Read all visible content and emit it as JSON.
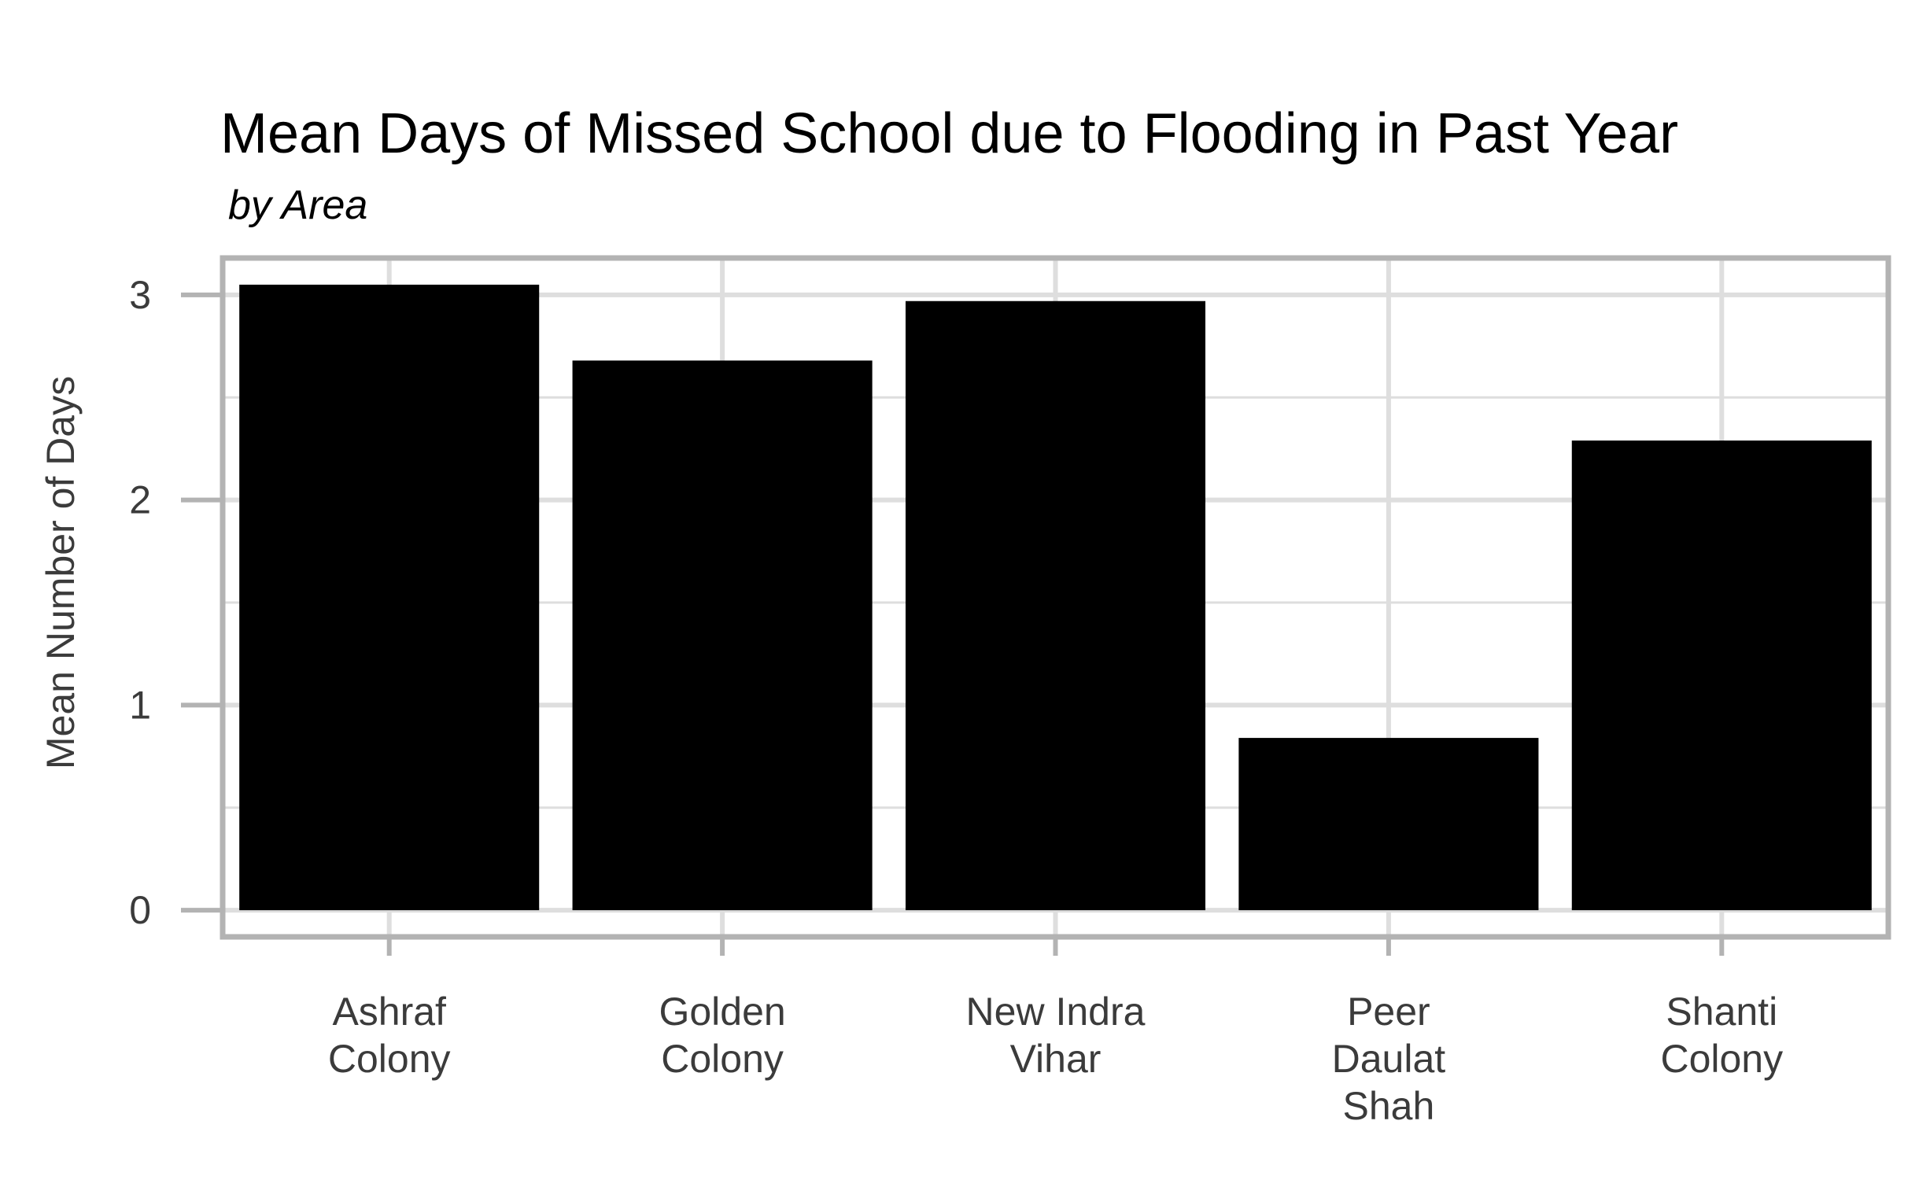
{
  "chart_data": {
    "type": "bar",
    "title": "Mean Days of Missed School due to Flooding in Past Year",
    "subtitle": "by Area",
    "xlabel": "",
    "ylabel": "Mean Number of Days",
    "categories": [
      [
        "Ashraf",
        "Colony"
      ],
      [
        "Golden",
        "Colony"
      ],
      [
        "New Indra",
        "Vihar"
      ],
      [
        "Peer",
        "Daulat",
        "Shah"
      ],
      [
        "Shanti",
        "Colony"
      ]
    ],
    "values": [
      3.05,
      2.68,
      2.97,
      0.84,
      2.29
    ],
    "ylim": [
      -0.13,
      3.18
    ],
    "yticks": [
      0,
      1,
      2,
      3
    ],
    "grid": true,
    "legend": "none",
    "colors": {
      "bar": "#000000",
      "grid": "#dedede",
      "border": "#b3b3b3",
      "text": "#3b3b3b"
    }
  }
}
